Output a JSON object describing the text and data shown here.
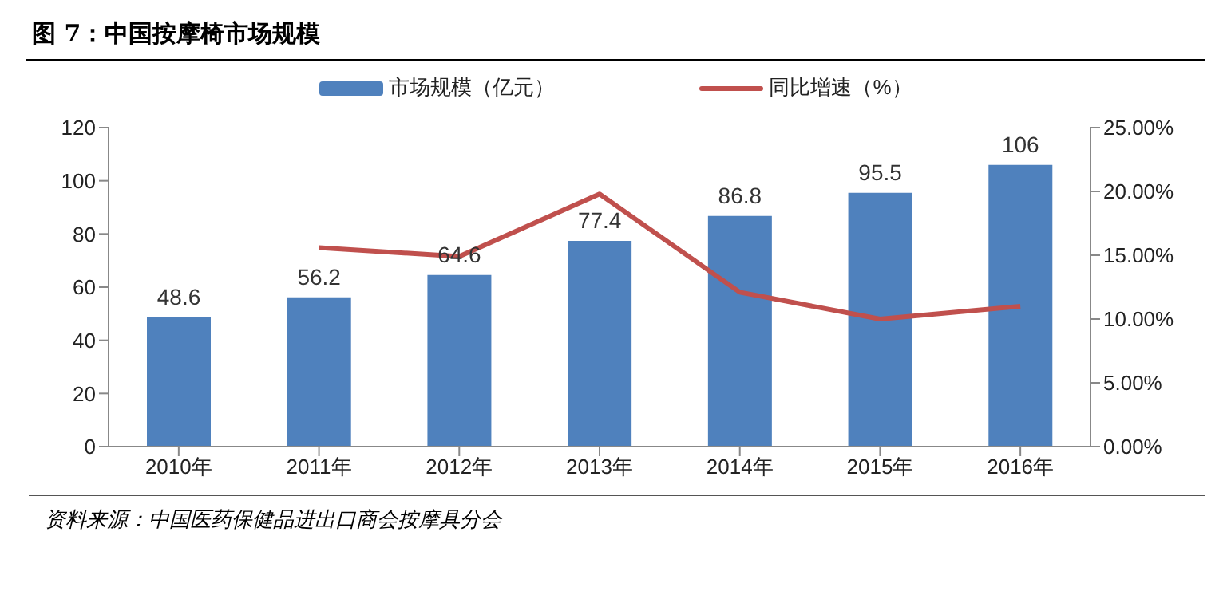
{
  "chart_data": {
    "type": "bar",
    "title": "图 7：中国按摩椅市场规模",
    "categories": [
      "2010年",
      "2011年",
      "2012年",
      "2013年",
      "2014年",
      "2015年",
      "2016年"
    ],
    "series": [
      {
        "name": "市场规模（亿元）",
        "color": "#4f81bd",
        "values": [
          48.6,
          56.2,
          64.6,
          77.4,
          86.8,
          95.5,
          106
        ],
        "value_labels": [
          "48.6",
          "56.2",
          "64.6",
          "77.4",
          "86.8",
          "95.5",
          "106"
        ]
      },
      {
        "name": "同比增速（%）",
        "type": "line",
        "axis": "y2",
        "color": "#c0504d",
        "values": [
          null,
          15.6,
          14.9,
          19.8,
          12.1,
          10.0,
          11.0
        ]
      }
    ],
    "ylim": [
      0,
      120
    ],
    "yticks": [
      0,
      20,
      40,
      60,
      80,
      100,
      120
    ],
    "y2lim": [
      0,
      25
    ],
    "y2ticks": [
      {
        "value": 0,
        "label": "0.00%"
      },
      {
        "value": 5,
        "label": "5.00%"
      },
      {
        "value": 10,
        "label": "10.00%"
      },
      {
        "value": 15,
        "label": "15.00%"
      },
      {
        "value": 20,
        "label": "20.00%"
      },
      {
        "value": 25,
        "label": "25.00%"
      }
    ],
    "legend": "top",
    "grid": false,
    "marker": "none",
    "line_style": "solid",
    "annotations": [
      "资料来源：中国医药保健品进出口商会按摩具分会"
    ]
  }
}
